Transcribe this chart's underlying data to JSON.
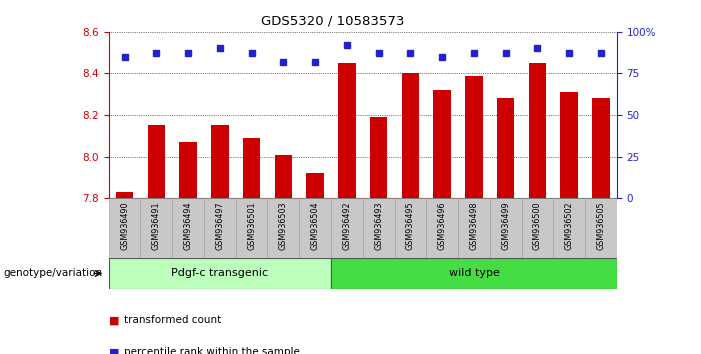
{
  "title": "GDS5320 / 10583573",
  "categories": [
    "GSM936490",
    "GSM936491",
    "GSM936494",
    "GSM936497",
    "GSM936501",
    "GSM936503",
    "GSM936504",
    "GSM936492",
    "GSM936493",
    "GSM936495",
    "GSM936496",
    "GSM936498",
    "GSM936499",
    "GSM936500",
    "GSM936502",
    "GSM936505"
  ],
  "bar_values": [
    7.83,
    8.15,
    8.07,
    8.15,
    8.09,
    8.01,
    7.92,
    8.45,
    8.19,
    8.4,
    8.32,
    8.39,
    8.28,
    8.45,
    8.31,
    8.28
  ],
  "percentile_values": [
    85,
    87,
    87,
    90,
    87,
    82,
    82,
    92,
    87,
    87,
    85,
    87,
    87,
    90,
    87,
    87
  ],
  "bar_color": "#cc0000",
  "dot_color": "#2222cc",
  "ylim_left": [
    7.8,
    8.6
  ],
  "ylim_right": [
    0,
    100
  ],
  "yticks_left": [
    7.8,
    8.0,
    8.2,
    8.4,
    8.6
  ],
  "yticks_right": [
    0,
    25,
    50,
    75,
    100
  ],
  "ytick_right_labels": [
    "0",
    "25",
    "50",
    "75",
    "100%"
  ],
  "group1_label": "Pdgf-c transgenic",
  "group2_label": "wild type",
  "group1_count": 7,
  "group2_count": 9,
  "genotype_label": "genotype/variation",
  "legend_bar_label": "transformed count",
  "legend_dot_label": "percentile rank within the sample",
  "group1_color": "#bbffbb",
  "group2_color": "#44dd44",
  "xtick_bg": "#c8c8c8",
  "plot_bg": "#ffffff",
  "bar_width": 0.55
}
